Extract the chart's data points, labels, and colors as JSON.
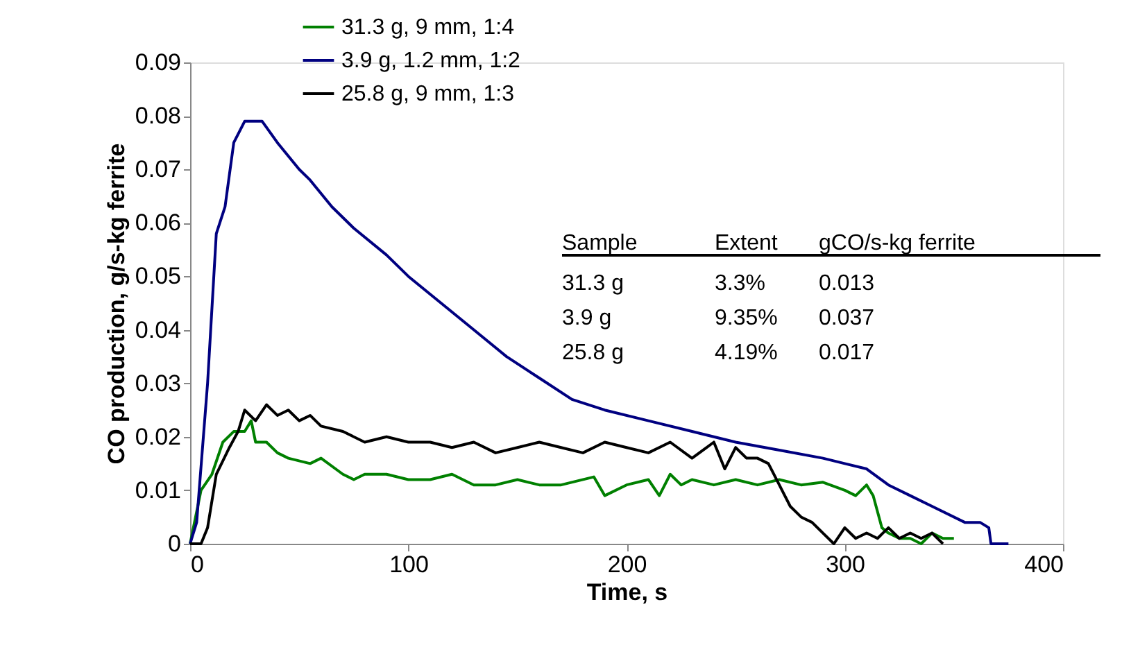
{
  "chart_data": {
    "type": "line",
    "xlabel": "Time, s",
    "ylabel": "CO production, g/s-kg ferrite",
    "xlim": [
      0,
      400
    ],
    "xticks": [
      0,
      100,
      200,
      300,
      400
    ],
    "ylim": [
      0,
      0.09
    ],
    "yticks": [
      0,
      0.01,
      0.02,
      0.03,
      0.04,
      0.05,
      0.06,
      0.07,
      0.08,
      0.09
    ],
    "grid": false,
    "legend": "top left",
    "marker": "none",
    "line_style": "solid",
    "annotations": [
      "Sample",
      "Extent",
      "gCO/s-kg ferrite",
      "31.3 g",
      "3.3%",
      "0.013",
      "3.9 g",
      "9.35%",
      "0.037",
      "25.8 g",
      "4.19%",
      "0.017"
    ],
    "series": [
      {
        "name": "31.3 g, 9 mm, 1:4",
        "color": "#008000",
        "x": [
          0,
          5,
          10,
          15,
          20,
          25,
          28,
          30,
          35,
          40,
          45,
          55,
          60,
          70,
          75,
          80,
          90,
          100,
          110,
          120,
          130,
          140,
          150,
          160,
          170,
          185,
          190,
          200,
          210,
          215,
          220,
          225,
          230,
          240,
          250,
          260,
          270,
          280,
          290,
          300,
          305,
          310,
          313,
          317,
          320,
          325,
          330,
          335,
          340,
          345,
          350
        ],
        "values": [
          0,
          0.01,
          0.013,
          0.019,
          0.021,
          0.021,
          0.023,
          0.019,
          0.019,
          0.017,
          0.016,
          0.015,
          0.016,
          0.013,
          0.012,
          0.013,
          0.013,
          0.012,
          0.012,
          0.013,
          0.011,
          0.011,
          0.012,
          0.011,
          0.011,
          0.0125,
          0.009,
          0.011,
          0.012,
          0.009,
          0.013,
          0.011,
          0.012,
          0.011,
          0.012,
          0.011,
          0.012,
          0.011,
          0.0115,
          0.01,
          0.009,
          0.011,
          0.009,
          0.003,
          0.002,
          0.001,
          0.001,
          0,
          0.002,
          0.001,
          0.001
        ]
      },
      {
        "name": "3.9 g, 1.2 mm, 1:2",
        "color": "#000080",
        "x": [
          0,
          3,
          8,
          12,
          16,
          20,
          25,
          33,
          40,
          50,
          55,
          65,
          75,
          90,
          100,
          115,
          130,
          145,
          160,
          175,
          190,
          210,
          230,
          250,
          270,
          290,
          300,
          310,
          320,
          330,
          340,
          355,
          362,
          366,
          367,
          375
        ],
        "values": [
          0,
          0.004,
          0.03,
          0.058,
          0.063,
          0.075,
          0.079,
          0.079,
          0.075,
          0.07,
          0.068,
          0.063,
          0.059,
          0.054,
          0.05,
          0.045,
          0.04,
          0.035,
          0.031,
          0.027,
          0.025,
          0.023,
          0.021,
          0.019,
          0.0175,
          0.016,
          0.015,
          0.014,
          0.011,
          0.009,
          0.007,
          0.004,
          0.004,
          0.003,
          0,
          0
        ]
      },
      {
        "name": "25.8 g, 9 mm, 1:3",
        "color": "#000000",
        "x": [
          0,
          5,
          8,
          12,
          18,
          22,
          25,
          30,
          35,
          40,
          45,
          50,
          55,
          60,
          70,
          80,
          90,
          100,
          110,
          120,
          130,
          140,
          150,
          160,
          170,
          180,
          190,
          200,
          210,
          220,
          230,
          240,
          245,
          250,
          255,
          260,
          265,
          270,
          275,
          280,
          285,
          290,
          295,
          300,
          305,
          310,
          315,
          320,
          325,
          330,
          335,
          340,
          345
        ],
        "values": [
          0,
          0,
          0.003,
          0.013,
          0.018,
          0.021,
          0.025,
          0.023,
          0.026,
          0.024,
          0.025,
          0.023,
          0.024,
          0.022,
          0.021,
          0.019,
          0.02,
          0.019,
          0.019,
          0.018,
          0.019,
          0.017,
          0.018,
          0.019,
          0.018,
          0.017,
          0.019,
          0.018,
          0.017,
          0.019,
          0.016,
          0.019,
          0.014,
          0.018,
          0.016,
          0.016,
          0.015,
          0.011,
          0.007,
          0.005,
          0.004,
          0.002,
          0,
          0.003,
          0.001,
          0.002,
          0.001,
          0.003,
          0.001,
          0.002,
          0.001,
          0.002,
          0
        ]
      }
    ]
  }
}
